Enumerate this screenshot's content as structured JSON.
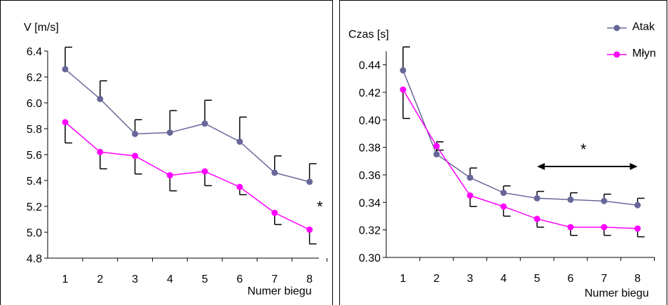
{
  "chart_data": [
    {
      "type": "line",
      "ylabel": "V  [m/s]",
      "xlabel": "Numer biegu",
      "categories": [
        "1",
        "2",
        "3",
        "4",
        "5",
        "6",
        "7",
        "8"
      ],
      "ylim": [
        4.8,
        6.4
      ],
      "yticks": [
        "4.8",
        "5.0",
        "5.2",
        "5.4",
        "5.6",
        "5.8",
        "6.0",
        "6.2",
        "6.4"
      ],
      "annotation": "*",
      "series": [
        {
          "name": "Atak",
          "color": "#666699",
          "values": [
            6.26,
            6.03,
            5.76,
            5.77,
            5.84,
            5.7,
            5.46,
            5.39
          ],
          "err": [
            0.17,
            0.14,
            0.11,
            0.17,
            0.18,
            0.19,
            0.13,
            0.14
          ],
          "err_dir": "up"
        },
        {
          "name": "Młyn",
          "color": "#ff00ff",
          "values": [
            5.85,
            5.62,
            5.59,
            5.44,
            5.47,
            5.35,
            5.15,
            5.02
          ],
          "err": [
            0.16,
            0.13,
            0.14,
            0.12,
            0.11,
            0.06,
            0.09,
            0.11
          ],
          "err_dir": "down"
        }
      ]
    },
    {
      "type": "line",
      "ylabel": "Czas [s]",
      "xlabel": "Numer biegu",
      "categories": [
        "1",
        "2",
        "3",
        "4",
        "5",
        "6",
        "7",
        "8"
      ],
      "ylim": [
        0.3,
        0.45
      ],
      "yticks": [
        "0.30",
        "0.32",
        "0.34",
        "0.36",
        "0.38",
        "0.40",
        "0.42",
        "0.44"
      ],
      "annotation": "*",
      "arrow_range": [
        5,
        8
      ],
      "legend": {
        "position": "top-right",
        "items": [
          "Atak",
          "Młyn"
        ]
      },
      "series": [
        {
          "name": "Atak",
          "color": "#666699",
          "values": [
            0.436,
            0.375,
            0.358,
            0.347,
            0.343,
            0.342,
            0.341,
            0.338
          ],
          "err": [
            0.017,
            0.009,
            0.007,
            0.005,
            0.005,
            0.005,
            0.005,
            0.005
          ],
          "err_dir": "up"
        },
        {
          "name": "Młyn",
          "color": "#ff00ff",
          "values": [
            0.422,
            0.381,
            0.345,
            0.337,
            0.328,
            0.322,
            0.322,
            0.321
          ],
          "err": [
            0.021,
            0.003,
            0.008,
            0.007,
            0.006,
            0.006,
            0.006,
            0.006
          ],
          "err_dir": "down"
        }
      ]
    }
  ]
}
